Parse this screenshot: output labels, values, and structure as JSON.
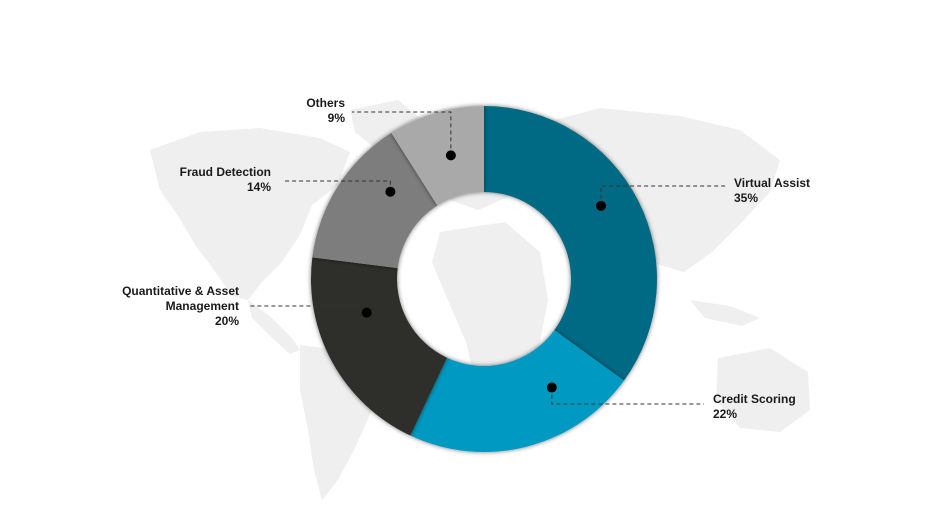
{
  "chart_data": {
    "type": "pie",
    "variant": "donut",
    "title": "",
    "categories": [
      "Virtual Assist",
      "Credit Scoring",
      "Quantitative & Asset Management",
      "Fraud Detection",
      "Others"
    ],
    "values": [
      35,
      22,
      20,
      14,
      9
    ],
    "unit": "%",
    "colors": [
      "#006a85",
      "#0099c2",
      "#2f2d2a",
      "#7d7d7d",
      "#a9a9a9"
    ],
    "labels": [
      {
        "name": "Virtual Assist",
        "pct": "35%"
      },
      {
        "name": "Credit Scoring",
        "pct": "22%"
      },
      {
        "name": "Quantitative & Asset Management",
        "pct": "20%"
      },
      {
        "name": "Fraud Detection",
        "pct": "14%"
      },
      {
        "name": "Others",
        "pct": "9%"
      }
    ],
    "legend": "none",
    "background": "world-map-silhouette"
  }
}
